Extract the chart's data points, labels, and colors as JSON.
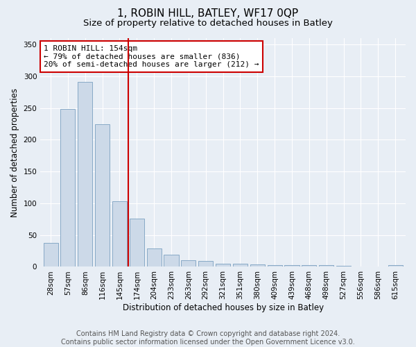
{
  "title": "1, ROBIN HILL, BATLEY, WF17 0QP",
  "subtitle": "Size of property relative to detached houses in Batley",
  "xlabel": "Distribution of detached houses by size in Batley",
  "ylabel": "Number of detached properties",
  "categories": [
    "28sqm",
    "57sqm",
    "86sqm",
    "116sqm",
    "145sqm",
    "174sqm",
    "204sqm",
    "233sqm",
    "263sqm",
    "292sqm",
    "321sqm",
    "351sqm",
    "380sqm",
    "409sqm",
    "439sqm",
    "468sqm",
    "498sqm",
    "527sqm",
    "556sqm",
    "586sqm",
    "615sqm"
  ],
  "values": [
    38,
    249,
    291,
    224,
    103,
    76,
    29,
    19,
    10,
    9,
    5,
    5,
    4,
    3,
    3,
    3,
    3,
    2,
    0,
    0,
    3
  ],
  "bar_color": "#ccd9e8",
  "bar_edge_color": "#7a9fc0",
  "vline_x_idx": 4,
  "vline_color": "#cc0000",
  "annotation_text": "1 ROBIN HILL: 154sqm\n← 79% of detached houses are smaller (836)\n20% of semi-detached houses are larger (212) →",
  "annotation_box_color": "white",
  "annotation_box_edge_color": "#cc0000",
  "ylim": [
    0,
    360
  ],
  "yticks": [
    0,
    50,
    100,
    150,
    200,
    250,
    300,
    350
  ],
  "background_color": "#e8eef5",
  "plot_bg_color": "#e8eef5",
  "footer": "Contains HM Land Registry data © Crown copyright and database right 2024.\nContains public sector information licensed under the Open Government Licence v3.0.",
  "title_fontsize": 11,
  "subtitle_fontsize": 9.5,
  "axis_label_fontsize": 8.5,
  "tick_fontsize": 7.5,
  "footer_fontsize": 7,
  "annotation_fontsize": 8
}
